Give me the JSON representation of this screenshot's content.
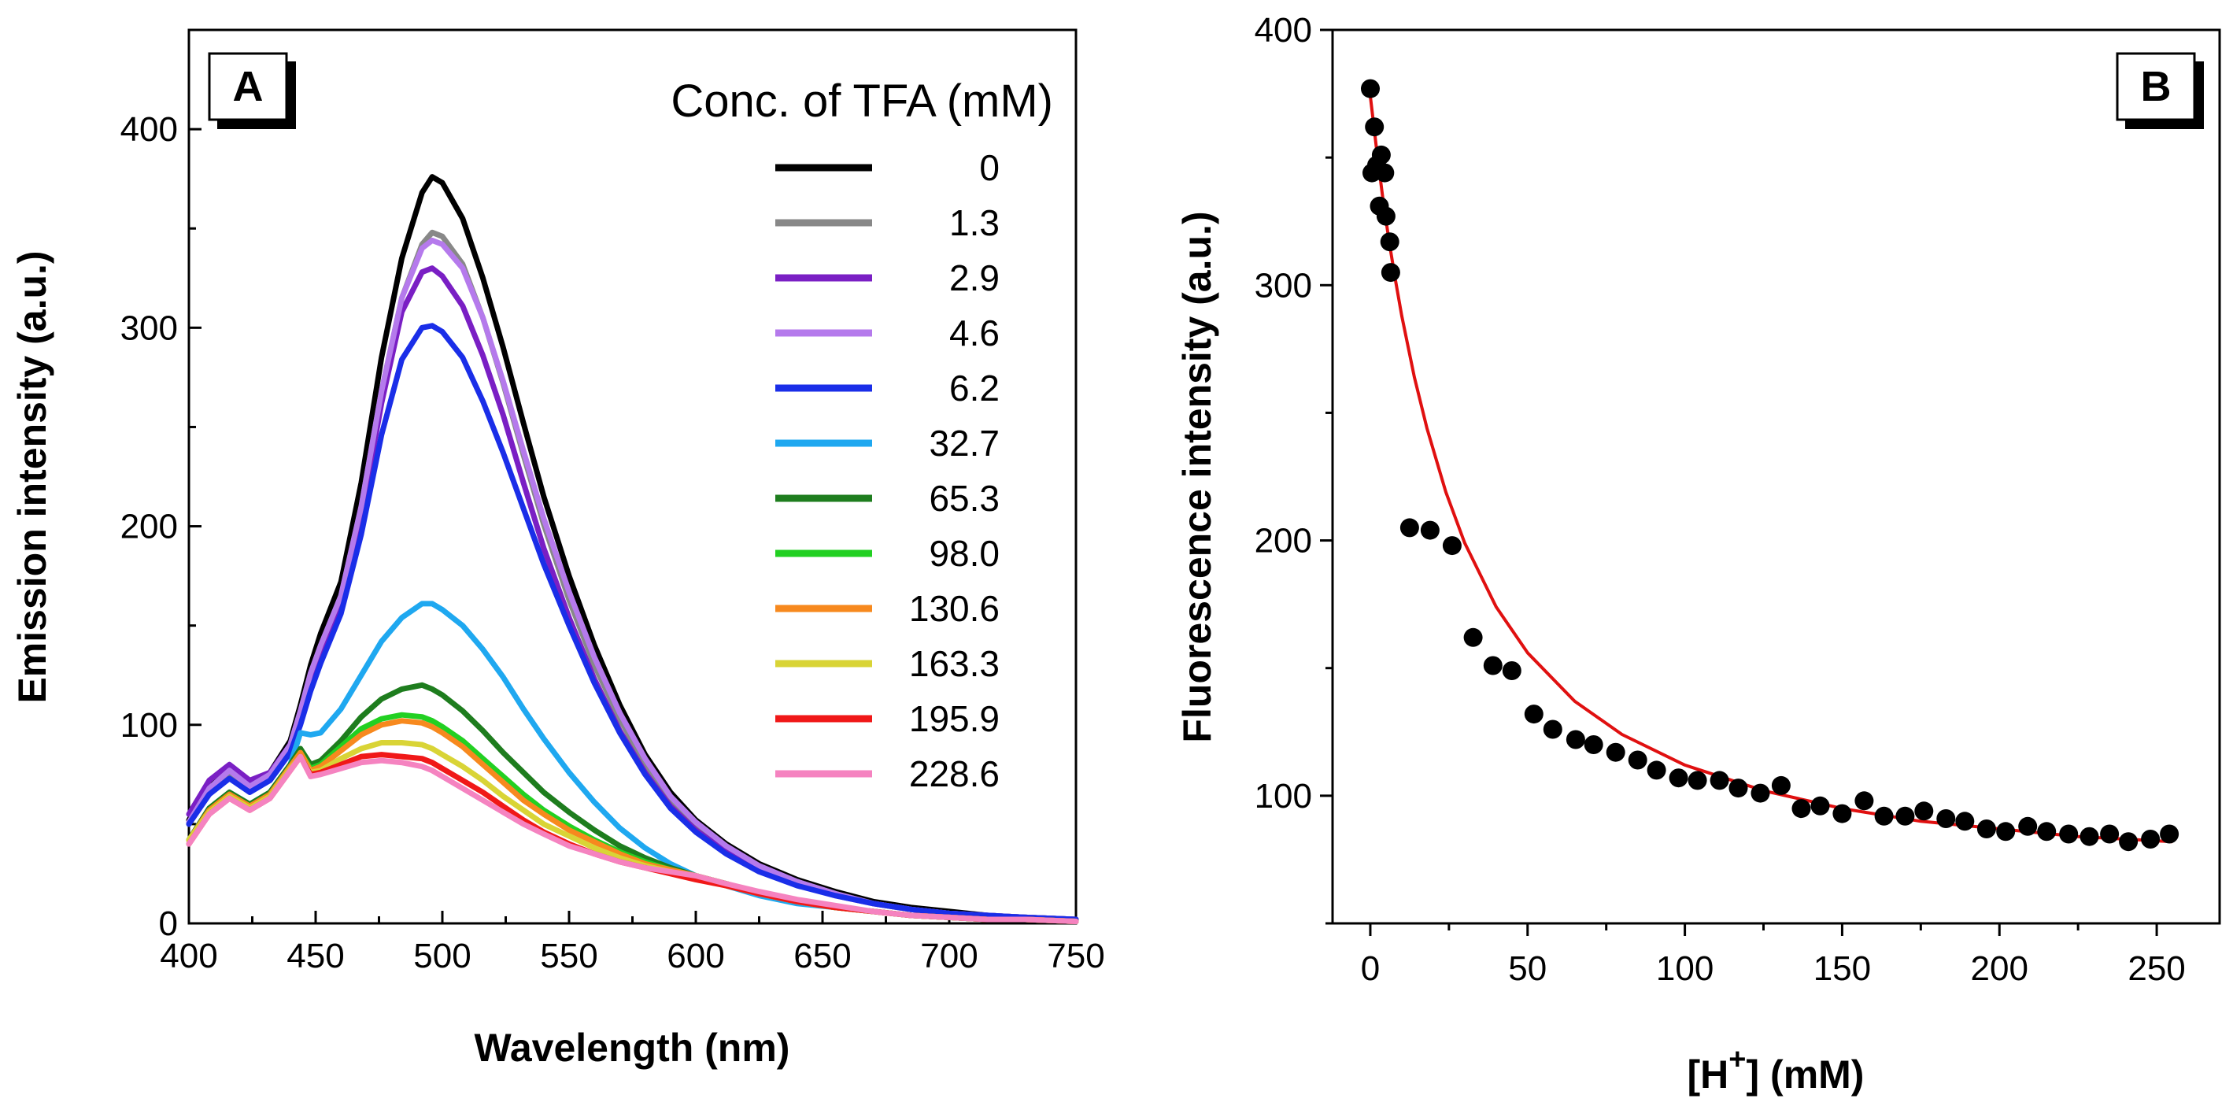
{
  "chart_data": [
    {
      "type": "line",
      "panel_label": "A",
      "xlabel": "Wavelength (nm)",
      "ylabel": "Emission intensity (a.u.)",
      "xlim": [
        400,
        750
      ],
      "ylim": [
        0,
        450
      ],
      "xticks": [
        400,
        450,
        500,
        550,
        600,
        650,
        700,
        750
      ],
      "yticks": [
        0,
        100,
        200,
        300,
        400
      ],
      "legend": {
        "title": "Conc. of TFA (mM)",
        "placement": "top-right"
      },
      "x": [
        400,
        408,
        416,
        424,
        432,
        440,
        444,
        448,
        452,
        460,
        468,
        476,
        484,
        492,
        496,
        500,
        508,
        516,
        524,
        532,
        540,
        550,
        560,
        570,
        580,
        590,
        600,
        612,
        625,
        640,
        655,
        670,
        685,
        700,
        715,
        730,
        750
      ],
      "series": [
        {
          "name": "0",
          "color": "#000000",
          "values": [
            52,
            70,
            78,
            70,
            76,
            92,
            110,
            130,
            146,
            172,
            222,
            285,
            335,
            368,
            376,
            373,
            355,
            325,
            290,
            252,
            215,
            175,
            140,
            110,
            85,
            66,
            52,
            40,
            30,
            22,
            16,
            11,
            8,
            6,
            4,
            3,
            2
          ]
        },
        {
          "name": "1.3",
          "color": "#888888",
          "values": [
            50,
            67,
            76,
            68,
            74,
            90,
            107,
            126,
            140,
            165,
            210,
            268,
            315,
            342,
            348,
            346,
            332,
            305,
            272,
            236,
            201,
            163,
            130,
            103,
            80,
            62,
            49,
            38,
            28,
            21,
            15,
            10,
            7,
            5,
            4,
            3,
            2
          ]
        },
        {
          "name": "2.9",
          "color": "#7a1fc4",
          "values": [
            55,
            72,
            80,
            72,
            76,
            90,
            106,
            124,
            138,
            162,
            205,
            262,
            308,
            328,
            330,
            326,
            311,
            286,
            256,
            222,
            189,
            154,
            123,
            97,
            76,
            59,
            47,
            36,
            27,
            20,
            14,
            10,
            7,
            5,
            4,
            3,
            2
          ]
        },
        {
          "name": "4.6",
          "color": "#b57aec",
          "values": [
            51,
            68,
            77,
            69,
            75,
            90,
            107,
            126,
            140,
            165,
            210,
            268,
            315,
            340,
            344,
            342,
            330,
            305,
            273,
            238,
            204,
            167,
            134,
            106,
            83,
            64,
            51,
            39,
            29,
            21,
            15,
            10,
            7,
            5,
            4,
            3,
            2
          ]
        },
        {
          "name": "6.2",
          "color": "#1a2ee8",
          "values": [
            50,
            65,
            73,
            66,
            72,
            86,
            100,
            117,
            131,
            156,
            196,
            246,
            284,
            300,
            301,
            298,
            285,
            263,
            237,
            209,
            181,
            150,
            121,
            96,
            75,
            58,
            46,
            35,
            26,
            19,
            14,
            10,
            7,
            5,
            4,
            3,
            2
          ]
        },
        {
          "name": "32.7",
          "color": "#1fa8f0",
          "values": [
            42,
            58,
            66,
            60,
            66,
            80,
            96,
            95,
            96,
            108,
            125,
            142,
            154,
            161,
            161,
            158,
            150,
            138,
            124,
            108,
            93,
            76,
            61,
            48,
            38,
            30,
            24,
            19,
            14,
            10,
            8,
            6,
            4,
            3,
            2,
            2,
            1
          ]
        },
        {
          "name": "65.3",
          "color": "#1e7d1e",
          "values": [
            42,
            58,
            66,
            60,
            66,
            80,
            88,
            80,
            82,
            92,
            104,
            113,
            118,
            120,
            118,
            115,
            107,
            97,
            86,
            76,
            66,
            56,
            47,
            39,
            33,
            28,
            24,
            20,
            15,
            11,
            8,
            6,
            4,
            3,
            2,
            2,
            1
          ]
        },
        {
          "name": "98.0",
          "color": "#22d022",
          "values": [
            42,
            57,
            65,
            59,
            65,
            79,
            86,
            78,
            80,
            89,
            98,
            103,
            105,
            104,
            102,
            99,
            92,
            83,
            74,
            65,
            57,
            49,
            42,
            36,
            31,
            27,
            24,
            20,
            15,
            11,
            8,
            6,
            4,
            3,
            2,
            2,
            1
          ]
        },
        {
          "name": "130.6",
          "color": "#f7891e",
          "values": [
            42,
            57,
            65,
            59,
            65,
            79,
            86,
            77,
            79,
            87,
            95,
            100,
            102,
            101,
            99,
            96,
            89,
            80,
            71,
            62,
            55,
            47,
            41,
            35,
            30,
            27,
            24,
            20,
            15,
            11,
            8,
            6,
            4,
            3,
            2,
            2,
            1
          ]
        },
        {
          "name": "163.3",
          "color": "#d9d436",
          "values": [
            42,
            56,
            64,
            58,
            64,
            78,
            84,
            76,
            77,
            83,
            88,
            91,
            91,
            90,
            88,
            85,
            79,
            72,
            64,
            57,
            50,
            44,
            38,
            33,
            29,
            26,
            23,
            19,
            15,
            11,
            8,
            6,
            4,
            3,
            2,
            2,
            1
          ]
        },
        {
          "name": "195.9",
          "color": "#f01818",
          "values": [
            40,
            55,
            63,
            57,
            63,
            77,
            84,
            75,
            76,
            80,
            84,
            85,
            84,
            83,
            81,
            78,
            72,
            66,
            59,
            52,
            46,
            40,
            35,
            31,
            28,
            25,
            22,
            19,
            15,
            11,
            8,
            6,
            4,
            3,
            2,
            2,
            1
          ]
        },
        {
          "name": "228.6",
          "color": "#f583c0",
          "values": [
            40,
            55,
            63,
            57,
            63,
            77,
            84,
            74,
            75,
            78,
            81,
            82,
            81,
            79,
            77,
            74,
            68,
            62,
            56,
            50,
            45,
            39,
            35,
            31,
            28,
            26,
            24,
            20,
            16,
            12,
            9,
            6,
            4,
            3,
            2,
            2,
            1
          ]
        }
      ]
    },
    {
      "type": "scatter",
      "panel_label": "B",
      "xlabel_main": "[H",
      "xlabel_sup": "+",
      "xlabel_tail": "] (mM)",
      "ylabel": "Fluorescence intensity (a.u.)",
      "xlim": [
        -12,
        270
      ],
      "ylim": [
        50,
        400
      ],
      "xticks": [
        0,
        50,
        100,
        150,
        200,
        250
      ],
      "yticks": [
        100,
        200,
        300,
        400
      ],
      "points": {
        "name": "data",
        "color": "#000000",
        "x": [
          0,
          0.5,
          1.3,
          2,
          2.9,
          3.5,
          4.6,
          5,
          6.2,
          6.5,
          12.5,
          19,
          26,
          32.7,
          39,
          45,
          52,
          58,
          65.3,
          71,
          78,
          85,
          91,
          98,
          104,
          111,
          117,
          124,
          130.6,
          137,
          143,
          150,
          157,
          163.3,
          170,
          176,
          183,
          189,
          195.9,
          202,
          209,
          215,
          222,
          228.6,
          235,
          241,
          248,
          254
        ],
        "y": [
          377,
          344,
          362,
          347,
          331,
          351,
          344,
          327,
          317,
          305,
          205,
          204,
          198,
          162,
          151,
          149,
          132,
          126,
          122,
          120,
          117,
          114,
          110,
          107,
          106,
          106,
          103,
          101,
          104,
          95,
          96,
          93,
          98,
          92,
          92,
          94,
          91,
          90,
          87,
          86,
          88,
          86,
          85,
          84,
          85,
          82,
          83,
          85
        ]
      },
      "fit": {
        "name": "fit",
        "color": "#e01010",
        "x": [
          0,
          2,
          4,
          6,
          8,
          10,
          14,
          18,
          24,
          30,
          40,
          50,
          65,
          80,
          100,
          125,
          150,
          175,
          200,
          225,
          255
        ],
        "y": [
          374,
          353,
          334,
          317,
          302,
          288,
          264,
          244,
          219,
          199,
          174,
          156,
          137,
          124,
          112,
          102,
          95,
          90,
          87,
          84,
          82
        ]
      }
    }
  ]
}
